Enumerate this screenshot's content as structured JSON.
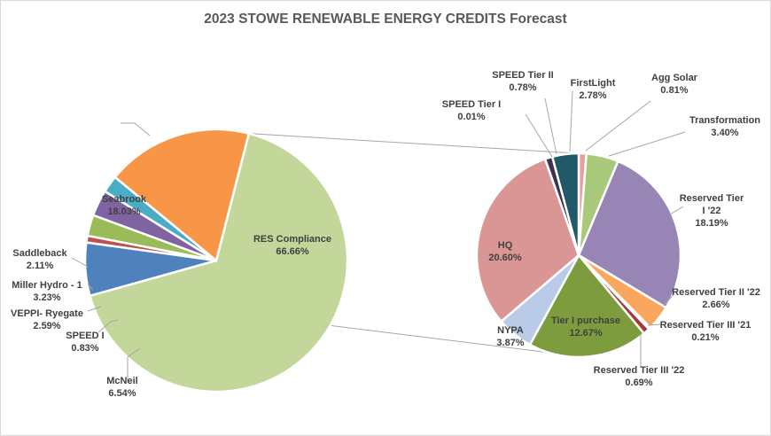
{
  "chart_data": {
    "type": "pie",
    "title": "2023 STOWE RENEWABLE ENERGY CREDITS Forecast",
    "primary_pie": {
      "slices": [
        {
          "name": "RES Compliance",
          "value": 66.66,
          "label": "66.66%",
          "color": "#c4d79b"
        },
        {
          "name": "McNeil",
          "value": 6.54,
          "label": "6.54%",
          "color": "#4f81bd"
        },
        {
          "name": "SPEED I",
          "value": 0.83,
          "label": "0.83%",
          "color": "#c0504d"
        },
        {
          "name": "VEPPI- Ryegate",
          "value": 2.59,
          "label": "2.59%",
          "color": "#9bbb59"
        },
        {
          "name": "Miller Hydro - 1",
          "value": 3.23,
          "label": "3.23%",
          "color": "#8064a2"
        },
        {
          "name": "Saddleback",
          "value": 2.11,
          "label": "2.11%",
          "color": "#4bacc6"
        },
        {
          "name": "Seabrook",
          "value": 18.03,
          "label": "18.03%",
          "color": "#f79646"
        }
      ]
    },
    "secondary_pie": {
      "slices": [
        {
          "name": "Agg Solar",
          "value": 0.81,
          "label": "0.81%",
          "color": "#e6a19f"
        },
        {
          "name": "Transformation",
          "value": 3.4,
          "label": "3.40%",
          "color": "#a9c97a"
        },
        {
          "name": "Reserved Tier I '22",
          "value": 18.19,
          "label": "18.19%",
          "color": "#9785b5"
        },
        {
          "name": "Reserved Tier II '22",
          "value": 2.66,
          "label": "2.66%",
          "color": "#f9a65e"
        },
        {
          "name": "Reserved Tier III '21",
          "value": 0.21,
          "label": "0.21%",
          "color": "#4a6e9e"
        },
        {
          "name": "Reserved Tier III '22",
          "value": 0.69,
          "label": "0.69%",
          "color": "#a13a38"
        },
        {
          "name": "Tier I purchase",
          "value": 12.67,
          "label": "12.67%",
          "color": "#7d9c3e"
        },
        {
          "name": "NYPA",
          "value": 3.87,
          "label": "3.87%",
          "color": "#b9cbe6"
        },
        {
          "name": "HQ",
          "value": 20.6,
          "label": "20.60%",
          "color": "#d99694"
        },
        {
          "name": "SPEED Tier I",
          "value": 0.01,
          "label": "0.01%",
          "color": "#8fb9e0"
        },
        {
          "name": "SPEED Tier II",
          "value": 0.78,
          "label": "0.78%",
          "color": "#403152"
        },
        {
          "name": "FirstLight",
          "value": 2.78,
          "label": "2.78%",
          "color": "#215968"
        }
      ]
    },
    "legend": "none",
    "connector": "RES Compliance slice expanded into secondary pie"
  }
}
